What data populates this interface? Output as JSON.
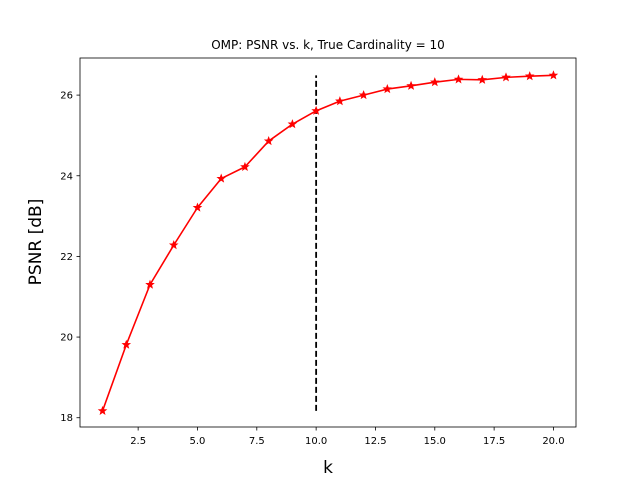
{
  "chart_data": {
    "type": "line",
    "title": "OMP: PSNR vs. k, True Cardinality = 10",
    "xlabel": "k",
    "ylabel": "PSNR [dB]",
    "xlim": [
      0.05,
      20.95
    ],
    "ylim": [
      17.77,
      26.92
    ],
    "x_ticks": [
      2.5,
      5.0,
      7.5,
      10.0,
      12.5,
      15.0,
      17.5,
      20.0
    ],
    "x_tick_labels": [
      "2.5",
      "5.0",
      "7.5",
      "10.0",
      "12.5",
      "15.0",
      "17.5",
      "20.0"
    ],
    "y_ticks": [
      18,
      20,
      22,
      24,
      26
    ],
    "y_tick_labels": [
      "18",
      "20",
      "22",
      "24",
      "26"
    ],
    "grid": false,
    "series": [
      {
        "color": "#ff0000",
        "marker": "star",
        "x": [
          1,
          2,
          3,
          4,
          5,
          6,
          7,
          8,
          9,
          10,
          11,
          12,
          13,
          14,
          15,
          16,
          17,
          18,
          19,
          20
        ],
        "values": [
          18.17,
          19.81,
          21.3,
          22.28,
          23.21,
          23.93,
          24.22,
          24.86,
          25.28,
          25.61,
          25.85,
          26.0,
          26.15,
          26.23,
          26.32,
          26.39,
          26.38,
          26.44,
          26.47,
          26.49
        ]
      }
    ],
    "annotations": [
      {
        "kind": "vertical-line",
        "x": 10,
        "y_range": [
          18.17,
          26.49
        ],
        "color": "#000000",
        "style": "dashed"
      }
    ]
  }
}
